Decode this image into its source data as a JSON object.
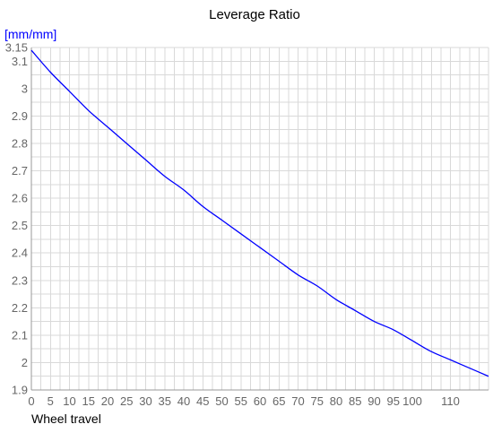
{
  "chart_data": {
    "type": "line",
    "title": "Leverage Ratio",
    "xlabel": "Wheel travel",
    "ylabel": "[mm/mm]",
    "xlim": [
      0,
      120
    ],
    "ylim": [
      1.9,
      3.15
    ],
    "x_ticks": [
      0,
      5,
      10,
      15,
      20,
      25,
      30,
      35,
      40,
      45,
      50,
      55,
      60,
      65,
      70,
      75,
      80,
      85,
      90,
      95,
      100,
      110
    ],
    "x_tick_labels": [
      "0",
      "5",
      "10",
      "15",
      "20",
      "25",
      "30",
      "35",
      "40",
      "45",
      "50",
      "55",
      "60",
      "65",
      "70",
      "75",
      "80",
      "85",
      "90",
      "95",
      "100",
      "110"
    ],
    "y_ticks": [
      1.9,
      2,
      2.1,
      2.2,
      2.3,
      2.4,
      2.5,
      2.6,
      2.7,
      2.8,
      2.9,
      3,
      3.1,
      3.15
    ],
    "y_tick_labels": [
      "1.9",
      "2",
      "2.1",
      "2.2",
      "2.3",
      "2.4",
      "2.5",
      "2.6",
      "2.7",
      "2.8",
      "2.9",
      "3",
      "3.1",
      "3.15"
    ],
    "grid": true,
    "series": [
      {
        "color": "#0000ff",
        "x": [
          0,
          5,
          10,
          15,
          20,
          25,
          30,
          35,
          40,
          45,
          50,
          55,
          60,
          65,
          70,
          75,
          80,
          85,
          90,
          95,
          100,
          105,
          110,
          115,
          120
        ],
        "y": [
          3.14,
          3.06,
          2.99,
          2.92,
          2.86,
          2.8,
          2.74,
          2.68,
          2.63,
          2.57,
          2.52,
          2.47,
          2.42,
          2.37,
          2.32,
          2.28,
          2.23,
          2.19,
          2.15,
          2.12,
          2.08,
          2.04,
          2.01,
          1.98,
          1.95
        ]
      }
    ],
    "colors": {
      "grid": "#d9d9d9",
      "axis": "#999999",
      "tick_label": "#666666",
      "ylabel": "#0000ff"
    }
  }
}
